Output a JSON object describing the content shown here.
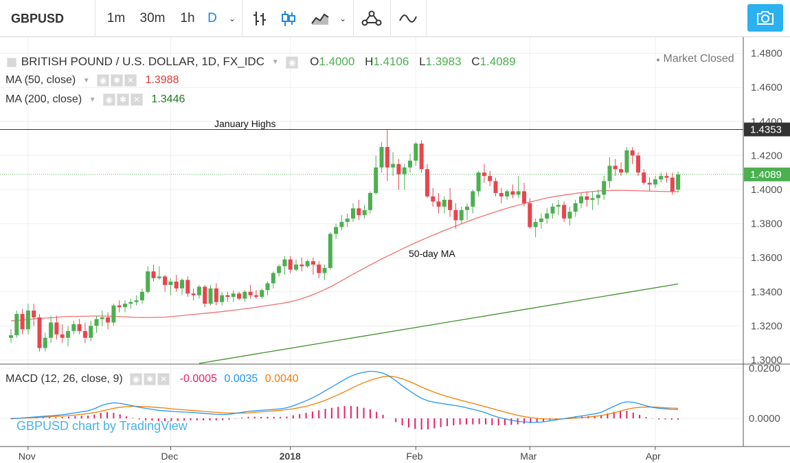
{
  "toolbar": {
    "symbol": "GBPUSD",
    "intervals": [
      "1m",
      "30m",
      "1h",
      "D"
    ],
    "active_interval": "D"
  },
  "header": {
    "title": "BRITISH POUND / U.S. DOLLAR, 1D, FX_IDC",
    "o_label": "O",
    "o_value": "1.4000",
    "h_label": "H",
    "h_value": "1.4106",
    "l_label": "L",
    "l_value": "1.3983",
    "c_label": "C",
    "c_value": "1.4089",
    "market_status": "Market Closed"
  },
  "indicators": {
    "ma50": {
      "label": "MA (50, close)",
      "value": "1.3988",
      "color": "#e53935"
    },
    "ma200": {
      "label": "MA (200, close)",
      "value": "1.3446",
      "color": "#1b7a1b"
    },
    "macd": {
      "label": "MACD (12, 26, close, 9)",
      "hist": "-0.0005",
      "macd": "0.0035",
      "signal": "0.0040"
    }
  },
  "annotations": {
    "january_highs": "January Highs",
    "ma_label": "50-day MA"
  },
  "watermark": "GBPUSD chart by TradingView",
  "colors": {
    "up": "#4caf50",
    "down": "#e8454e",
    "ma50": "#f07070",
    "ma200": "#3f8f2a",
    "macd": "#2196f3",
    "signal": "#f57c00",
    "hist": "#e91e63",
    "accent": "#2bb0f0"
  },
  "chart_data": {
    "type": "candlestick",
    "price_axis_labels": [
      "1.4800",
      "1.4600",
      "1.4400",
      "1.4200",
      "1.4000",
      "1.3800",
      "1.3600",
      "1.3400",
      "1.3200",
      "1.3000"
    ],
    "price_axis_values": [
      1.48,
      1.46,
      1.44,
      1.42,
      1.4,
      1.38,
      1.36,
      1.34,
      1.32,
      1.3
    ],
    "highlight_levels": [
      {
        "label": "1.4353",
        "value": 1.4353
      },
      {
        "label": "1.4089",
        "value": 1.4089
      }
    ],
    "macd_axis_labels": [
      "0.0200",
      "0.0000"
    ],
    "macd_axis_values": [
      0.02,
      0.0
    ],
    "time_labels": [
      "Nov",
      "Dec",
      "2018",
      "Feb",
      "Mar",
      "Apr"
    ],
    "time_label_index": [
      3,
      28,
      49,
      71,
      91,
      113
    ],
    "ohlc": [
      [
        1.313,
        1.318,
        1.31,
        1.3145
      ],
      [
        1.3145,
        1.329,
        1.313,
        1.327
      ],
      [
        1.327,
        1.33,
        1.315,
        1.318
      ],
      [
        1.318,
        1.333,
        1.315,
        1.329
      ],
      [
        1.329,
        1.333,
        1.32,
        1.325
      ],
      [
        1.325,
        1.327,
        1.305,
        1.307
      ],
      [
        1.307,
        1.316,
        1.305,
        1.313
      ],
      [
        1.313,
        1.326,
        1.31,
        1.322
      ],
      [
        1.322,
        1.326,
        1.312,
        1.315
      ],
      [
        1.315,
        1.321,
        1.31,
        1.313
      ],
      [
        1.313,
        1.32,
        1.308,
        1.317
      ],
      [
        1.317,
        1.323,
        1.315,
        1.321
      ],
      [
        1.321,
        1.324,
        1.315,
        1.317
      ],
      [
        1.317,
        1.322,
        1.31,
        1.313
      ],
      [
        1.313,
        1.323,
        1.311,
        1.32
      ],
      [
        1.32,
        1.326,
        1.316,
        1.324
      ],
      [
        1.324,
        1.329,
        1.32,
        1.325
      ],
      [
        1.325,
        1.328,
        1.318,
        1.322
      ],
      [
        1.322,
        1.333,
        1.32,
        1.332
      ],
      [
        1.332,
        1.335,
        1.328,
        1.331
      ],
      [
        1.331,
        1.335,
        1.328,
        1.333
      ],
      [
        1.333,
        1.336,
        1.33,
        1.334
      ],
      [
        1.334,
        1.338,
        1.332,
        1.335
      ],
      [
        1.335,
        1.342,
        1.333,
        1.34
      ],
      [
        1.34,
        1.355,
        1.339,
        1.352
      ],
      [
        1.352,
        1.356,
        1.346,
        1.348
      ],
      [
        1.348,
        1.355,
        1.347,
        1.349
      ],
      [
        1.349,
        1.35,
        1.34,
        1.344
      ],
      [
        1.344,
        1.348,
        1.338,
        1.346
      ],
      [
        1.346,
        1.35,
        1.34,
        1.342
      ],
      [
        1.342,
        1.348,
        1.338,
        1.347
      ],
      [
        1.347,
        1.349,
        1.337,
        1.339
      ],
      [
        1.339,
        1.342,
        1.335,
        1.338
      ],
      [
        1.338,
        1.344,
        1.336,
        1.343
      ],
      [
        1.343,
        1.344,
        1.331,
        1.333
      ],
      [
        1.333,
        1.344,
        1.332,
        1.342
      ],
      [
        1.342,
        1.345,
        1.332,
        1.334
      ],
      [
        1.334,
        1.34,
        1.332,
        1.338
      ],
      [
        1.338,
        1.34,
        1.334,
        1.337
      ],
      [
        1.337,
        1.341,
        1.334,
        1.339
      ],
      [
        1.339,
        1.34,
        1.335,
        1.336
      ],
      [
        1.336,
        1.341,
        1.334,
        1.34
      ],
      [
        1.34,
        1.344,
        1.336,
        1.338
      ],
      [
        1.338,
        1.341,
        1.336,
        1.337
      ],
      [
        1.337,
        1.342,
        1.336,
        1.341
      ],
      [
        1.341,
        1.346,
        1.338,
        1.345
      ],
      [
        1.345,
        1.352,
        1.342,
        1.351
      ],
      [
        1.351,
        1.356,
        1.349,
        1.355
      ],
      [
        1.355,
        1.361,
        1.35,
        1.359
      ],
      [
        1.359,
        1.361,
        1.351,
        1.353
      ],
      [
        1.353,
        1.359,
        1.352,
        1.356
      ],
      [
        1.356,
        1.36,
        1.352,
        1.355
      ],
      [
        1.355,
        1.359,
        1.354,
        1.358
      ],
      [
        1.358,
        1.36,
        1.35,
        1.356
      ],
      [
        1.356,
        1.358,
        1.348,
        1.351
      ],
      [
        1.351,
        1.356,
        1.347,
        1.354
      ],
      [
        1.354,
        1.375,
        1.353,
        1.374
      ],
      [
        1.374,
        1.38,
        1.371,
        1.378
      ],
      [
        1.378,
        1.385,
        1.376,
        1.381
      ],
      [
        1.381,
        1.386,
        1.378,
        1.383
      ],
      [
        1.383,
        1.392,
        1.381,
        1.389
      ],
      [
        1.389,
        1.394,
        1.382,
        1.385
      ],
      [
        1.385,
        1.391,
        1.383,
        1.388
      ],
      [
        1.388,
        1.399,
        1.386,
        1.398
      ],
      [
        1.398,
        1.42,
        1.397,
        1.413
      ],
      [
        1.413,
        1.428,
        1.41,
        1.425
      ],
      [
        1.425,
        1.435,
        1.405,
        1.413
      ],
      [
        1.413,
        1.422,
        1.408,
        1.415
      ],
      [
        1.415,
        1.418,
        1.4,
        1.409
      ],
      [
        1.409,
        1.415,
        1.4,
        1.413
      ],
      [
        1.413,
        1.421,
        1.41,
        1.417
      ],
      [
        1.417,
        1.428,
        1.414,
        1.427
      ],
      [
        1.427,
        1.429,
        1.41,
        1.412
      ],
      [
        1.412,
        1.415,
        1.395,
        1.396
      ],
      [
        1.396,
        1.401,
        1.39,
        1.393
      ],
      [
        1.393,
        1.398,
        1.386,
        1.39
      ],
      [
        1.39,
        1.396,
        1.386,
        1.394
      ],
      [
        1.394,
        1.401,
        1.384,
        1.388
      ],
      [
        1.388,
        1.392,
        1.377,
        1.382
      ],
      [
        1.382,
        1.39,
        1.38,
        1.388
      ],
      [
        1.388,
        1.392,
        1.382,
        1.39
      ],
      [
        1.39,
        1.4,
        1.386,
        1.399
      ],
      [
        1.399,
        1.411,
        1.396,
        1.41
      ],
      [
        1.41,
        1.415,
        1.404,
        1.408
      ],
      [
        1.408,
        1.411,
        1.402,
        1.405
      ],
      [
        1.405,
        1.407,
        1.396,
        1.398
      ],
      [
        1.398,
        1.401,
        1.392,
        1.396
      ],
      [
        1.396,
        1.4,
        1.394,
        1.399
      ],
      [
        1.399,
        1.403,
        1.395,
        1.397
      ],
      [
        1.397,
        1.408,
        1.395,
        1.399
      ],
      [
        1.399,
        1.404,
        1.39,
        1.392
      ],
      [
        1.392,
        1.395,
        1.377,
        1.378
      ],
      [
        1.378,
        1.383,
        1.372,
        1.381
      ],
      [
        1.381,
        1.386,
        1.377,
        1.383
      ],
      [
        1.383,
        1.389,
        1.38,
        1.386
      ],
      [
        1.386,
        1.392,
        1.383,
        1.39
      ],
      [
        1.39,
        1.394,
        1.385,
        1.391
      ],
      [
        1.391,
        1.393,
        1.381,
        1.383
      ],
      [
        1.383,
        1.39,
        1.379,
        1.387
      ],
      [
        1.387,
        1.394,
        1.384,
        1.392
      ],
      [
        1.392,
        1.398,
        1.389,
        1.396
      ],
      [
        1.396,
        1.399,
        1.39,
        1.394
      ],
      [
        1.394,
        1.399,
        1.388,
        1.395
      ],
      [
        1.395,
        1.4,
        1.391,
        1.397
      ],
      [
        1.397,
        1.408,
        1.394,
        1.405
      ],
      [
        1.405,
        1.419,
        1.401,
        1.414
      ],
      [
        1.414,
        1.418,
        1.408,
        1.412
      ],
      [
        1.412,
        1.416,
        1.408,
        1.41
      ],
      [
        1.41,
        1.425,
        1.409,
        1.423
      ],
      [
        1.423,
        1.425,
        1.415,
        1.42
      ],
      [
        1.42,
        1.422,
        1.408,
        1.41
      ],
      [
        1.41,
        1.412,
        1.403,
        1.404
      ],
      [
        1.404,
        1.407,
        1.399,
        1.403
      ],
      [
        1.403,
        1.408,
        1.401,
        1.406
      ],
      [
        1.406,
        1.41,
        1.404,
        1.408
      ],
      [
        1.408,
        1.41,
        1.404,
        1.407
      ],
      [
        1.407,
        1.41,
        1.397,
        1.399
      ],
      [
        1.4,
        1.4106,
        1.3983,
        1.4089
      ]
    ],
    "ma50": [
      1.323,
      1.3232,
      1.3236,
      1.324,
      1.3244,
      1.3246,
      1.3248,
      1.3252,
      1.3255,
      1.3256,
      1.3256,
      1.3257,
      1.3258,
      1.3258,
      1.3257,
      1.3256,
      1.3254,
      1.3252,
      1.325,
      1.3249,
      1.3249,
      1.325,
      1.3251,
      1.3254,
      1.3258,
      1.3262,
      1.3266,
      1.327,
      1.3274,
      1.3278,
      1.3282,
      1.3287,
      1.3292,
      1.3297,
      1.3302,
      1.3308,
      1.3314,
      1.332,
      1.3326,
      1.3332,
      1.334,
      1.335,
      1.3362,
      1.3376,
      1.3392,
      1.341,
      1.343,
      1.3452,
      1.3475,
      1.3498,
      1.352,
      1.3542,
      1.3564,
      1.3586,
      1.3606,
      1.3626,
      1.3646,
      1.3665,
      1.3684,
      1.3702,
      1.372,
      1.3737,
      1.3754,
      1.377,
      1.3786,
      1.3802,
      1.3817,
      1.3832,
      1.3846,
      1.386,
      1.3873,
      1.3886,
      1.3898,
      1.3909,
      1.392,
      1.393,
      1.394,
      1.395,
      1.3958,
      1.3964,
      1.397,
      1.3976,
      1.3982,
      1.3986,
      1.399,
      1.3993,
      1.3994,
      1.3995,
      1.3995,
      1.3994,
      1.3993,
      1.3992,
      1.3991,
      1.399,
      1.3989,
      1.3988,
      1.3988
    ],
    "ma50_offset": 24,
    "ma200_start": [
      1.298,
      1.3446
    ],
    "macd_line": [
      -0.0002,
      0.0,
      0.0002,
      0.0004,
      0.0006,
      0.0008,
      0.001,
      0.0012,
      0.0014,
      0.0018,
      0.0022,
      0.0026,
      0.003,
      0.0038,
      0.005,
      0.0058,
      0.0062,
      0.006,
      0.0055,
      0.005,
      0.0044,
      0.004,
      0.0036,
      0.0032,
      0.003,
      0.0028,
      0.0026,
      0.0025,
      0.0024,
      0.0022,
      0.002,
      0.0018,
      0.0016,
      0.0015,
      0.0016,
      0.002,
      0.0024,
      0.0028,
      0.003,
      0.0032,
      0.0034,
      0.0036,
      0.0038,
      0.0042,
      0.005,
      0.006,
      0.007,
      0.0082,
      0.0095,
      0.011,
      0.0125,
      0.014,
      0.0155,
      0.0168,
      0.0178,
      0.0184,
      0.0188,
      0.0186,
      0.018,
      0.0168,
      0.015,
      0.013,
      0.0112,
      0.0095,
      0.008,
      0.007,
      0.0064,
      0.006,
      0.0056,
      0.0052,
      0.0048,
      0.0042,
      0.0036,
      0.003,
      0.0022,
      0.0012,
      0.0004,
      -0.0002,
      -0.0008,
      -0.0012,
      -0.0014,
      -0.0016,
      -0.0016,
      -0.0014,
      -0.001,
      -0.0006,
      -0.0002,
      0.0002,
      0.0006,
      0.001,
      0.0014,
      0.0018,
      0.0024,
      0.0036,
      0.0048,
      0.006,
      0.0066,
      0.0064,
      0.0058,
      0.005,
      0.0044,
      0.004,
      0.0038,
      0.0036,
      0.0035
    ],
    "signal_line": [
      0.0,
      0.0,
      0.0001,
      0.0002,
      0.0003,
      0.0005,
      0.0006,
      0.0008,
      0.0009,
      0.0011,
      0.0013,
      0.0016,
      0.0019,
      0.0023,
      0.0028,
      0.0034,
      0.004,
      0.0044,
      0.0047,
      0.0048,
      0.0048,
      0.0047,
      0.0045,
      0.0043,
      0.0041,
      0.0038,
      0.0036,
      0.0034,
      0.0032,
      0.003,
      0.0028,
      0.0026,
      0.0024,
      0.0022,
      0.0021,
      0.0021,
      0.0021,
      0.0022,
      0.0024,
      0.0026,
      0.0028,
      0.003,
      0.0032,
      0.0035,
      0.0038,
      0.0043,
      0.0048,
      0.0055,
      0.0063,
      0.0072,
      0.0083,
      0.0094,
      0.0106,
      0.0119,
      0.0131,
      0.0142,
      0.0152,
      0.016,
      0.0166,
      0.0168,
      0.0165,
      0.0158,
      0.0148,
      0.0137,
      0.0125,
      0.0114,
      0.0104,
      0.0095,
      0.0087,
      0.008,
      0.0073,
      0.0066,
      0.006,
      0.0053,
      0.0046,
      0.0039,
      0.0032,
      0.0025,
      0.0018,
      0.0012,
      0.0007,
      0.0003,
      0.0,
      -0.0002,
      -0.0003,
      -0.0003,
      -0.0002,
      -0.0001,
      0.0001,
      0.0003,
      0.0005,
      0.0008,
      0.0011,
      0.0016,
      0.0022,
      0.0029,
      0.0036,
      0.0041,
      0.0044,
      0.0045,
      0.0045,
      0.0044,
      0.0042,
      0.0041,
      0.004
    ],
    "macd_offset": 0
  }
}
